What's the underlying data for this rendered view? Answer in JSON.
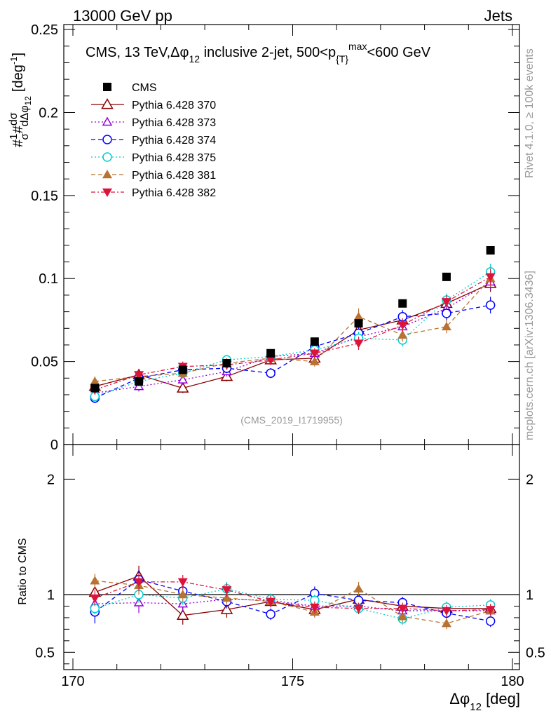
{
  "header": {
    "left": "13000 GeV pp",
    "right": "Jets"
  },
  "side": {
    "top": "Rivet 4.1.0, ≥ 100k events",
    "bottom": "mcplots.cern.ch [arXiv:1306.3436]"
  },
  "colors": {
    "CMS": "#000000",
    "370": "#8b0000",
    "373": "#9400d3",
    "374": "#0000ff",
    "375": "#00ced1",
    "381": "#b87333",
    "382": "#dc143c"
  },
  "chart_data": [
    {
      "type": "scatter",
      "panel": "main",
      "title": "CMS, 13 TeV, Δφ_12 inclusive 2-jet, 500<p_T^max<600 GeV",
      "title_parts": {
        "main": "CMS, 13 TeV,Δφ",
        "sub1": "12",
        "mid": " inclusive 2-jet, 500<p",
        "sub2": "{T}",
        "sup": "max",
        "end": "<600 GeV"
      },
      "ylabel": "#1/σ # dσ/dΔφ_12 [deg^-1]",
      "ylabel_parts": {
        "a": "#",
        "b": "1",
        "c": "σ",
        "d": "#",
        "e": "dσ",
        "f": "dΔφ",
        "g": "12",
        "h": "[deg",
        "i": "-1",
        "j": "]"
      },
      "watermark": "(CMS_2019_I1719955)",
      "xlim": [
        170,
        180
      ],
      "ylim": [
        0,
        0.253
      ],
      "yticks": [
        0,
        0.05,
        0.1,
        0.15,
        0.2,
        0.25
      ],
      "ytick_labels": [
        "0",
        "0.05",
        "0.1",
        "0.15",
        "0.2",
        "0.25"
      ],
      "x": [
        170.5,
        171.5,
        172.5,
        173.5,
        174.5,
        175.5,
        176.5,
        177.5,
        178.5,
        179.5
      ],
      "series": [
        {
          "key": "CMS",
          "name": "CMS",
          "marker": "square",
          "dash": "none",
          "values": [
            0.034,
            0.038,
            0.045,
            0.049,
            0.055,
            0.062,
            0.073,
            0.085,
            0.101,
            0.117
          ],
          "err": [
            0.002,
            0.002,
            0.002,
            0.002,
            0.002,
            0.002,
            0.002,
            0.002,
            0.002,
            0.002
          ]
        },
        {
          "key": "370",
          "name": "Pythia 6.428 370",
          "marker": "triangle-open",
          "dash": "solid",
          "values": [
            0.035,
            0.042,
            0.034,
            0.041,
            0.051,
            0.052,
            0.069,
            0.075,
            0.085,
            0.097
          ],
          "err": [
            0.003,
            0.003,
            0.003,
            0.003,
            0.003,
            0.003,
            0.004,
            0.004,
            0.004,
            0.005
          ]
        },
        {
          "key": "373",
          "name": "Pythia 6.428 373",
          "marker": "triangle-open-small",
          "dash": "dotted",
          "values": [
            0.031,
            0.035,
            0.039,
            0.044,
            0.053,
            0.055,
            0.065,
            0.071,
            0.082,
            0.098
          ],
          "err": [
            0.003,
            0.003,
            0.003,
            0.003,
            0.003,
            0.003,
            0.004,
            0.004,
            0.004,
            0.005
          ]
        },
        {
          "key": "374",
          "name": "Pythia 6.428 374",
          "marker": "circle-open",
          "dash": "dashed",
          "values": [
            0.028,
            0.04,
            0.045,
            0.046,
            0.043,
            0.059,
            0.067,
            0.077,
            0.079,
            0.084
          ],
          "err": [
            0.003,
            0.003,
            0.003,
            0.003,
            0.003,
            0.003,
            0.004,
            0.004,
            0.004,
            0.005
          ]
        },
        {
          "key": "375",
          "name": "Pythia 6.428 375",
          "marker": "circle-open",
          "dash": "dotted",
          "values": [
            0.029,
            0.038,
            0.043,
            0.051,
            0.053,
            0.057,
            0.064,
            0.063,
            0.087,
            0.104
          ],
          "err": [
            0.003,
            0.003,
            0.003,
            0.003,
            0.003,
            0.003,
            0.004,
            0.004,
            0.004,
            0.005
          ]
        },
        {
          "key": "381",
          "name": "Pythia 6.428 381",
          "marker": "triangle-filled",
          "dash": "dashed",
          "values": [
            0.038,
            0.041,
            0.043,
            0.049,
            0.052,
            0.05,
            0.077,
            0.066,
            0.071,
            0.1
          ],
          "err": [
            0.003,
            0.003,
            0.003,
            0.003,
            0.003,
            0.003,
            0.005,
            0.004,
            0.004,
            0.005
          ]
        },
        {
          "key": "382",
          "name": "Pythia 6.428 382",
          "marker": "triangle-down-filled",
          "dash": "dashdot",
          "values": [
            0.033,
            0.042,
            0.047,
            0.048,
            0.051,
            0.055,
            0.061,
            0.072,
            0.086,
            0.101
          ],
          "err": [
            0.003,
            0.003,
            0.003,
            0.003,
            0.003,
            0.003,
            0.004,
            0.004,
            0.004,
            0.005
          ]
        }
      ]
    },
    {
      "type": "scatter",
      "panel": "ratio",
      "ylabel": "Ratio to CMS",
      "xlabel": "Δφ_12 [deg]",
      "xlabel_parts": {
        "main": "Δφ",
        "sub": "12",
        "end": " [deg]"
      },
      "xlim": [
        170,
        180
      ],
      "ylim": [
        0.35,
        2.3
      ],
      "yticks": [
        0.5,
        1,
        2
      ],
      "ytick_labels": [
        "0.5",
        "1",
        "2"
      ],
      "xticks": [
        170,
        175,
        180
      ],
      "xtick_labels": [
        "170",
        "175",
        "180"
      ],
      "reference_line": 1,
      "x": [
        170.5,
        171.5,
        172.5,
        173.5,
        174.5,
        175.5,
        176.5,
        177.5,
        178.5,
        179.5
      ],
      "series": [
        {
          "key": "370",
          "values": [
            1.02,
            1.16,
            0.82,
            0.87,
            0.94,
            0.87,
            0.96,
            0.9,
            0.88,
            0.88
          ],
          "err": [
            0.05,
            0.09,
            0.08,
            0.07,
            0.05,
            0.06,
            0.05,
            0.05,
            0.05,
            0.05
          ]
        },
        {
          "key": "373",
          "values": [
            0.92,
            0.93,
            0.92,
            0.96,
            0.95,
            0.9,
            0.9,
            0.86,
            0.86,
            0.86
          ],
          "err": [
            0.05,
            0.09,
            0.07,
            0.06,
            0.05,
            0.05,
            0.05,
            0.05,
            0.05,
            0.05
          ]
        },
        {
          "key": "374",
          "values": [
            0.85,
            1.13,
            1.03,
            0.94,
            0.83,
            1.01,
            0.95,
            0.93,
            0.84,
            0.77
          ],
          "err": [
            0.1,
            0.08,
            0.07,
            0.06,
            0.05,
            0.06,
            0.05,
            0.05,
            0.05,
            0.05
          ]
        },
        {
          "key": "375",
          "values": [
            0.88,
            1.0,
            0.97,
            1.05,
            0.96,
            0.95,
            0.88,
            0.79,
            0.89,
            0.91
          ],
          "err": [
            0.05,
            0.07,
            0.06,
            0.06,
            0.05,
            0.05,
            0.05,
            0.05,
            0.05,
            0.05
          ]
        },
        {
          "key": "381",
          "values": [
            1.12,
            1.08,
            1.0,
            0.97,
            0.94,
            0.85,
            1.05,
            0.81,
            0.75,
            0.86
          ],
          "err": [
            0.06,
            0.08,
            0.06,
            0.06,
            0.05,
            0.05,
            0.06,
            0.05,
            0.05,
            0.05
          ]
        },
        {
          "key": "382",
          "values": [
            0.97,
            1.11,
            1.11,
            1.04,
            0.94,
            0.89,
            0.88,
            0.88,
            0.86,
            0.87
          ],
          "err": [
            0.07,
            0.08,
            0.06,
            0.06,
            0.05,
            0.05,
            0.05,
            0.05,
            0.05,
            0.05
          ]
        }
      ]
    }
  ]
}
